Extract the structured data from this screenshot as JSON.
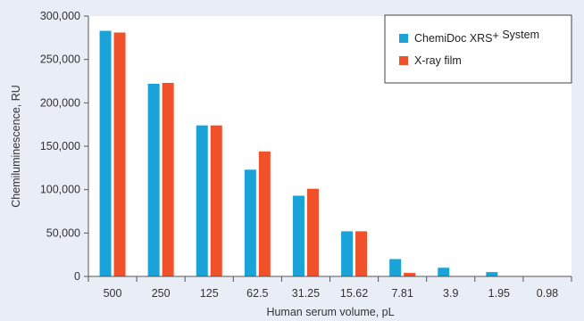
{
  "chart_data": {
    "type": "bar",
    "title": "",
    "xlabel": "Human serum volume, pL",
    "ylabel": "Chemiluminescence, RU",
    "categories": [
      "500",
      "250",
      "125",
      "62.5",
      "31.25",
      "15.62",
      "7.81",
      "3.9",
      "1.95",
      "0.98"
    ],
    "series": [
      {
        "name": "ChemiDoc XRS+ System",
        "name_main": "ChemiDoc XRS",
        "name_sup": "+",
        "name_tail": " System",
        "color": "#1aa3d9",
        "values": [
          283000,
          222000,
          174000,
          123000,
          93000,
          52000,
          20000,
          10000,
          5000,
          0
        ]
      },
      {
        "name": "X-ray film",
        "color": "#f0512a",
        "values": [
          281000,
          223000,
          174000,
          144000,
          101000,
          52000,
          4000,
          0,
          0,
          0
        ]
      }
    ],
    "ylim": [
      0,
      300000
    ],
    "yticks": [
      0,
      50000,
      100000,
      150000,
      200000,
      250000,
      300000
    ],
    "ytick_labels": [
      "0",
      "50,000",
      "100,000",
      "150,000",
      "200,000",
      "250,000",
      "300,000"
    ],
    "grid": false,
    "legend_position": "top-right",
    "background_color": "#e8edf6",
    "plot_background_color": "#ffffff"
  }
}
